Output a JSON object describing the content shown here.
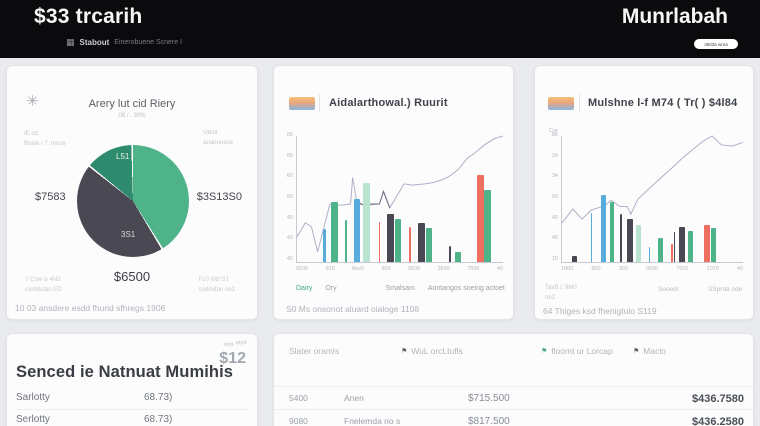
{
  "header": {
    "page_title": "$33 trcarih",
    "brand": "Munrlabah",
    "app_name": "Stabout",
    "app_subtitle": "Einerobuene Scnere I",
    "pill_button_label": "3603a wrna"
  },
  "colors": {
    "header_bg": "#0b0b0d",
    "page_bg": "#e9ebee",
    "card_bg": "#fcfcfd",
    "accent_green": "#4fb389",
    "accent_teal": "#2e8b6d",
    "accent_slate": "#4a4853",
    "accent_blue": "#58abdd",
    "accent_mint": "#b8e4cf",
    "accent_salmon": "#ee6e62",
    "line_lavender": "#adb1c8"
  },
  "pie_card": {
    "title": "Arery lut cid Riery",
    "subtitle": "08  /  .  30%",
    "left_note_line1": "IE cd",
    "left_note_line2": "Boste / 7 .mose",
    "right_note_line1": "Utent",
    "right_note_line2": "ananonece",
    "footnote_left_line1": "7 Cow  is  4N0",
    "footnote_left_line2": "carddutan ED",
    "footnote_right_line1": "F10  i06/'S1",
    "footnote_right_line2": "coddutan ne3",
    "status_line": "10 03 ansdere esdd fhurid sfhregs 1906"
  },
  "combo_card_1": {
    "title": "Aidalarthowal.) Ruurit",
    "legend": [
      {
        "label": "Dairy",
        "color": "#3fa87e"
      },
      {
        "label": "Ory",
        "color": "#9aa0a8"
      },
      {
        "label": "Smalsam",
        "color": "#9aa0a8"
      },
      {
        "label": "Aontangos soeing actoet",
        "color": "#9aa0a8"
      }
    ],
    "status_line": "S0 Ms onsonot aluard oialoge 1108"
  },
  "combo_card_2": {
    "title": "Mulshne l-f M74 ( Tr( ) $4l84",
    "axis_corner_label": "Cor",
    "footnote_1_line1": "TavB /,  9M0",
    "footnote_1_line2": "ne3",
    "footnote_2": "Sooeet",
    "footnote_3": "SSprda ode",
    "status_line": "64 Thiges ksd fhenigtulo S119"
  },
  "summary_card": {
    "badge_note": "swy, Myd",
    "badge_value": "$12",
    "title": "Senced ie Natnuat Mumihis",
    "rows": [
      {
        "label": "Sarlotty",
        "value": "68.73)"
      },
      {
        "label": "Serlotty",
        "value": "68.73)"
      }
    ]
  },
  "table_card": {
    "columns": [
      {
        "label": "Slater oramls",
        "flag": false,
        "flag_color": ""
      },
      {
        "label": "WuL orcLtufls",
        "flag": true,
        "flag_color": "#5a5f68"
      },
      {
        "label": "floomt ur Lorcap",
        "flag": true,
        "flag_color": "#3fa87e"
      },
      {
        "label": "Maclo",
        "flag": true,
        "flag_color": "#5a5f68"
      }
    ],
    "rows": [
      {
        "cells": [
          "5400",
          "Anen",
          "$715.500",
          "$436.7580"
        ]
      },
      {
        "cells": [
          "9080",
          "Fnelemda no s",
          "$817.500",
          "$436.2580"
        ]
      }
    ]
  },
  "chart_data": [
    {
      "type": "pie",
      "title": "Arery lut cid Riery",
      "slices": [
        {
          "label": "L51",
          "value": 41.5,
          "color": "#4fb389"
        },
        {
          "label": "3S1",
          "value": 44.5,
          "color": "#4a4853"
        },
        {
          "label": "",
          "value": 14,
          "color": "#2e8b6d"
        }
      ],
      "callouts": {
        "left": "$7583",
        "right": "$3S13S0",
        "bottom": "$6500"
      }
    },
    {
      "type": "combo-bar-line",
      "title": "Aidalarthowal.) Ruurit",
      "ylim": [
        0,
        100
      ],
      "y_ticks": [
        "85",
        "80",
        "60",
        "50",
        "40",
        "42",
        "45"
      ],
      "x_ticks": [
        "0536",
        "915",
        "8ev5",
        "959",
        "0500",
        "3549",
        "7500",
        "40"
      ],
      "palette": {
        "blue": "#58abdd",
        "green": "#4fb389",
        "mint": "#b8e4cf",
        "red": "#ee6e62",
        "slate": "#4a4853"
      },
      "bars": [
        {
          "x": 12.7,
          "h": 26,
          "w": 1.2,
          "c": "blue"
        },
        {
          "x": 16.5,
          "h": 48,
          "w": 3.2,
          "c": "green"
        },
        {
          "x": 23.3,
          "h": 33,
          "w": 0.8,
          "c": "green"
        },
        {
          "x": 27.6,
          "h": 50,
          "w": 3.2,
          "c": "blue"
        },
        {
          "x": 32.0,
          "h": 63,
          "w": 3.4,
          "c": "mint"
        },
        {
          "x": 39.7,
          "h": 32,
          "w": 0.8,
          "c": "red"
        },
        {
          "x": 43.9,
          "h": 38,
          "w": 3.2,
          "c": "slate"
        },
        {
          "x": 47.7,
          "h": 34,
          "w": 3.0,
          "c": "green"
        },
        {
          "x": 54.6,
          "h": 28,
          "w": 0.8,
          "c": "red"
        },
        {
          "x": 58.8,
          "h": 31,
          "w": 3.2,
          "c": "slate"
        },
        {
          "x": 62.7,
          "h": 27,
          "w": 3.0,
          "c": "green"
        },
        {
          "x": 74.0,
          "h": 13,
          "w": 1.0,
          "c": "slate"
        },
        {
          "x": 76.9,
          "h": 8,
          "w": 2.6,
          "c": "green"
        },
        {
          "x": 87.4,
          "h": 69,
          "w": 3.2,
          "c": "red"
        },
        {
          "x": 91.0,
          "h": 57,
          "w": 3.0,
          "c": "green"
        }
      ],
      "lines": [
        {
          "color": "#adb1c8",
          "points": [
            [
              0,
              20
            ],
            [
              4,
              31
            ],
            [
              7,
              28
            ],
            [
              10,
              8
            ],
            [
              16,
              46
            ],
            [
              21,
              45
            ],
            [
              26,
              46
            ],
            [
              27,
              67
            ],
            [
              29,
              48
            ],
            [
              33,
              45
            ],
            [
              40,
              46
            ],
            [
              42,
              56
            ],
            [
              45,
              43
            ],
            [
              52,
              62
            ],
            [
              56,
              61
            ],
            [
              62,
              62
            ],
            [
              66,
              63
            ],
            [
              70,
              65
            ],
            [
              74,
              68
            ],
            [
              78,
              73
            ],
            [
              83,
              83
            ],
            [
              86,
              86
            ],
            [
              91,
              93
            ],
            [
              96,
              98
            ],
            [
              100,
              100
            ]
          ]
        },
        {
          "color": "#6e7280",
          "points": [
            [
              29,
              47
            ],
            [
              33,
              45
            ],
            [
              36,
              46
            ],
            [
              40,
              46
            ],
            [
              42,
              56
            ],
            [
              45,
              43
            ]
          ]
        }
      ]
    },
    {
      "type": "combo-bar-line",
      "title": "Mulshne l-f M74 ( Tr( ) $4l84",
      "ylim": [
        0,
        100
      ],
      "y_ticks": [
        "86",
        "34",
        "34",
        "50",
        "40",
        "46",
        "15"
      ],
      "x_ticks": [
        "1800",
        "900",
        "300",
        "0000",
        "7500",
        "1079",
        "40"
      ],
      "palette": {
        "blue": "#58abdd",
        "green": "#4fb389",
        "mint": "#b8e4cf",
        "red": "#ee6e62",
        "slate": "#4a4853"
      },
      "bars": [
        {
          "x": 5.8,
          "h": 5,
          "w": 2.4,
          "c": "slate"
        },
        {
          "x": 15.8,
          "h": 39,
          "w": 0.8,
          "c": "blue"
        },
        {
          "x": 21.3,
          "h": 53,
          "w": 3.0,
          "c": "blue"
        },
        {
          "x": 26.5,
          "h": 48,
          "w": 2.0,
          "c": "green"
        },
        {
          "x": 32.2,
          "h": 38,
          "w": 0.8,
          "c": "slate"
        },
        {
          "x": 36.0,
          "h": 34,
          "w": 3.2,
          "c": "slate"
        },
        {
          "x": 40.8,
          "h": 29,
          "w": 3.0,
          "c": "mint"
        },
        {
          "x": 47.9,
          "h": 12,
          "w": 0.8,
          "c": "blue"
        },
        {
          "x": 52.8,
          "h": 19,
          "w": 3.0,
          "c": "green"
        },
        {
          "x": 60.4,
          "h": 14,
          "w": 0.7,
          "c": "red"
        },
        {
          "x": 61.8,
          "h": 24,
          "w": 0.7,
          "c": "slate"
        },
        {
          "x": 64.8,
          "h": 28,
          "w": 3.4,
          "c": "slate"
        },
        {
          "x": 69.5,
          "h": 25,
          "w": 3.0,
          "c": "green"
        },
        {
          "x": 78.5,
          "h": 29,
          "w": 3.0,
          "c": "red"
        },
        {
          "x": 82.3,
          "h": 27,
          "w": 2.8,
          "c": "green"
        }
      ],
      "lines": [
        {
          "color": "#adb1c8",
          "points": [
            [
              0,
              31
            ],
            [
              6,
              42
            ],
            [
              11,
              34
            ],
            [
              16,
              41
            ],
            [
              20,
              43
            ],
            [
              24,
              45
            ],
            [
              27,
              49
            ],
            [
              32,
              44
            ],
            [
              36,
              44
            ],
            [
              38,
              38
            ],
            [
              42,
              50
            ],
            [
              48,
              58
            ],
            [
              54,
              66
            ],
            [
              61,
              75
            ],
            [
              67,
              83
            ],
            [
              72,
              89
            ],
            [
              78,
              96
            ],
            [
              83,
              100
            ],
            [
              88,
              93
            ],
            [
              94,
              92
            ],
            [
              100,
              95
            ]
          ]
        }
      ]
    }
  ]
}
